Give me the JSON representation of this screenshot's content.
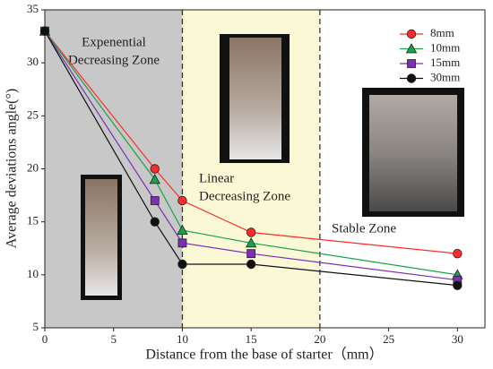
{
  "chart_data": {
    "type": "line",
    "x_label": "Distance from the base of starter（mm）",
    "y_label": "Average deviations angle(°)",
    "xlim": [
      0,
      32
    ],
    "xticks": [
      0,
      5,
      10,
      15,
      20,
      25,
      30
    ],
    "ylim": [
      5,
      35
    ],
    "yticks": [
      5,
      10,
      15,
      20,
      25,
      30,
      35
    ],
    "zones": [
      {
        "label": [
          "Expenential",
          "Decreasing Zone"
        ],
        "range": [
          0,
          10
        ],
        "color": "#c8c8c8"
      },
      {
        "label": [
          "Linear",
          "Decreasing Zone"
        ],
        "range": [
          10,
          20
        ],
        "color": "#fbf8d6"
      },
      {
        "label": [
          "Stable Zone"
        ],
        "range": [
          20,
          32
        ],
        "color": "#ffffff"
      }
    ],
    "x": [
      0,
      8,
      10,
      15,
      30
    ],
    "series": [
      {
        "name": "8mm",
        "color": "#ff2a2a",
        "marker": "circle",
        "values": [
          33,
          20,
          17,
          14,
          12
        ]
      },
      {
        "name": "10mm",
        "color": "#17a34a",
        "marker": "triangle",
        "values": [
          33,
          19,
          14.2,
          13,
          10
        ]
      },
      {
        "name": "15mm",
        "color": "#7b2fb5",
        "marker": "square",
        "values": [
          33,
          17,
          13,
          12,
          9.5
        ]
      },
      {
        "name": "30mm",
        "color": "#111111",
        "marker": "circle",
        "values": [
          33,
          15,
          11,
          11,
          9
        ]
      }
    ],
    "legend": "upper right"
  }
}
